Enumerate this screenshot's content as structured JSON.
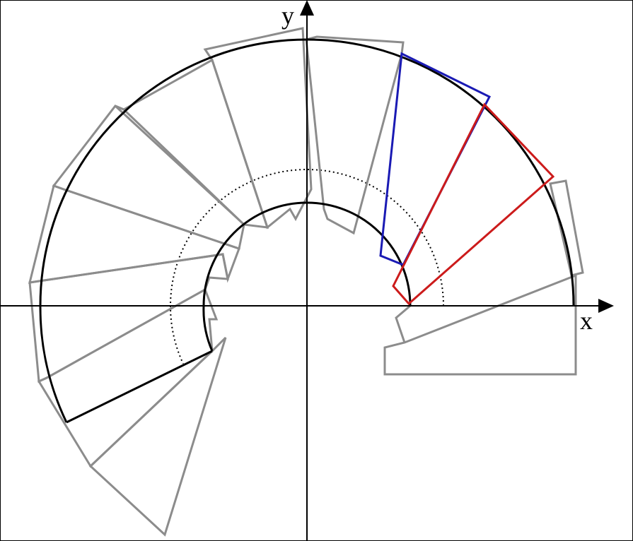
{
  "diagram": {
    "axes": {
      "x_label": "x",
      "y_label": "y"
    },
    "colors": {
      "background": "#ffffff",
      "frame": "#000000",
      "axis": "#000000",
      "outer_arc": "#000000",
      "inner_arc": "#000000",
      "dotted_arc": "#000000",
      "step_outline": "#8c8c8c",
      "highlight_step_1": "#1a1ab4",
      "highlight_step_2": "#cc1b1b",
      "final_step": "#000000"
    }
  }
}
